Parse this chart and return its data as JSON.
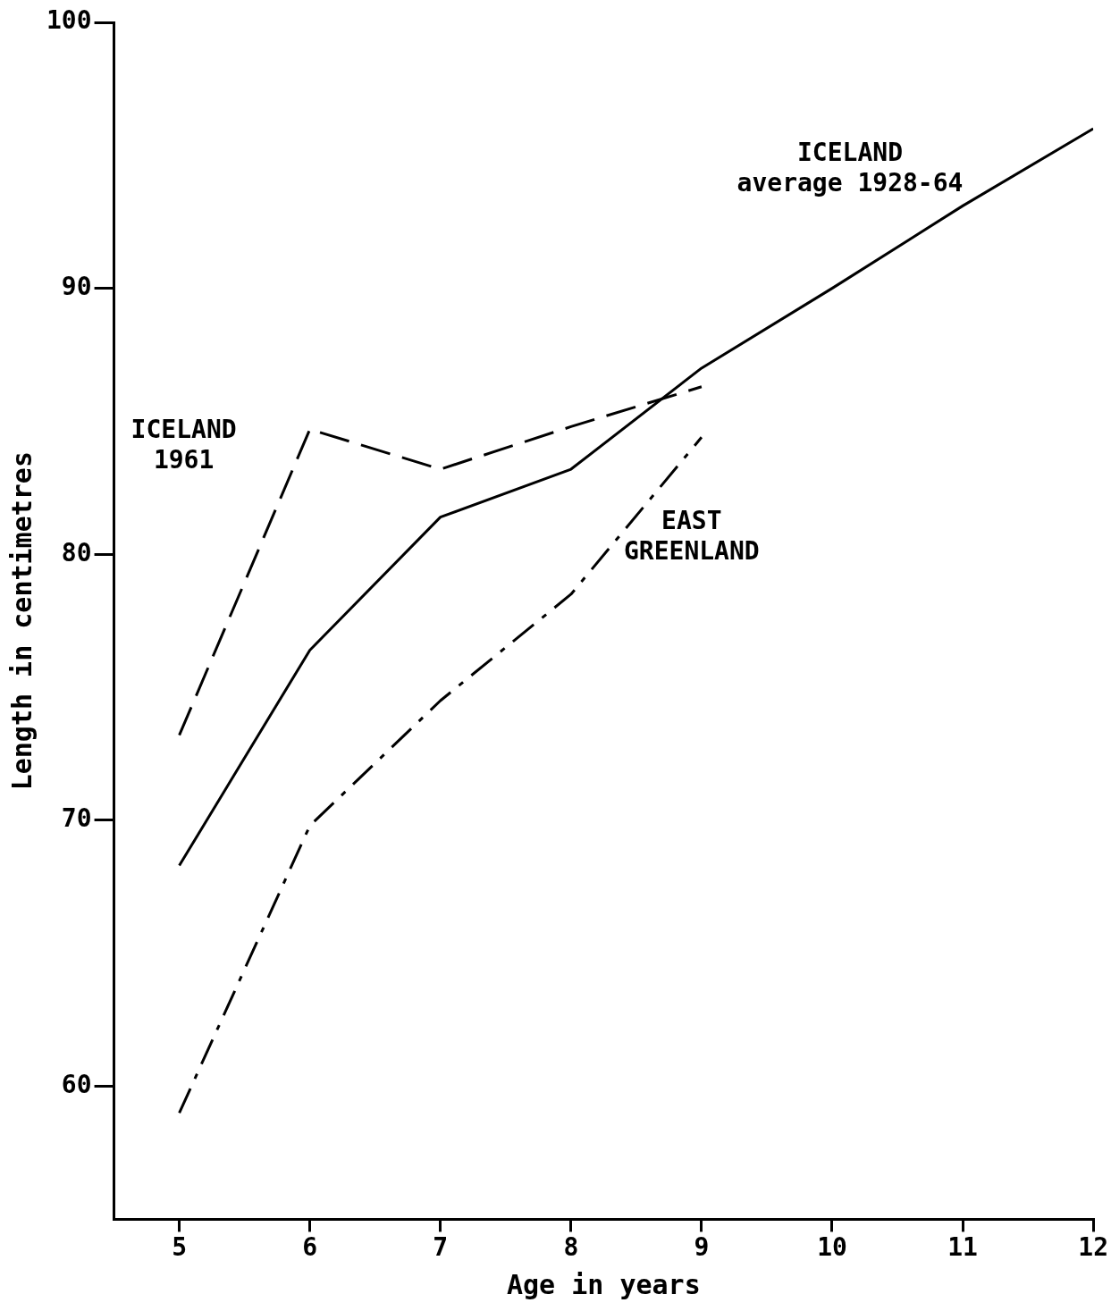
{
  "chart_data": {
    "type": "line",
    "xlabel": "Age in years",
    "ylabel": "Length in centimetres",
    "x": [
      5,
      6,
      7,
      8,
      9,
      10,
      11,
      12
    ],
    "xlim": [
      4.5,
      12
    ],
    "xticks": [
      5,
      6,
      7,
      8,
      9,
      10,
      11,
      12
    ],
    "ylim": [
      55,
      100
    ],
    "yticks": [
      60,
      70,
      80,
      90,
      100
    ],
    "grid": false,
    "legend": false,
    "marker": "none",
    "series": [
      {
        "name": "ICELAND average 1928-64",
        "color": "#000000",
        "line_style": "solid",
        "values": [
          68.3,
          76.4,
          81.4,
          83.2,
          87.0,
          90.0,
          93.1,
          96.0
        ]
      },
      {
        "name": "ICELAND 1961",
        "color": "#000000",
        "line_style": "dashed",
        "values": [
          73.2,
          84.7,
          83.2,
          84.8,
          86.3,
          null,
          null,
          null
        ]
      },
      {
        "name": "EAST GREENLAND",
        "color": "#000000",
        "line_style": "dashdot",
        "values": [
          59.0,
          69.8,
          74.5,
          78.5,
          84.4,
          null,
          null,
          null
        ]
      }
    ]
  }
}
